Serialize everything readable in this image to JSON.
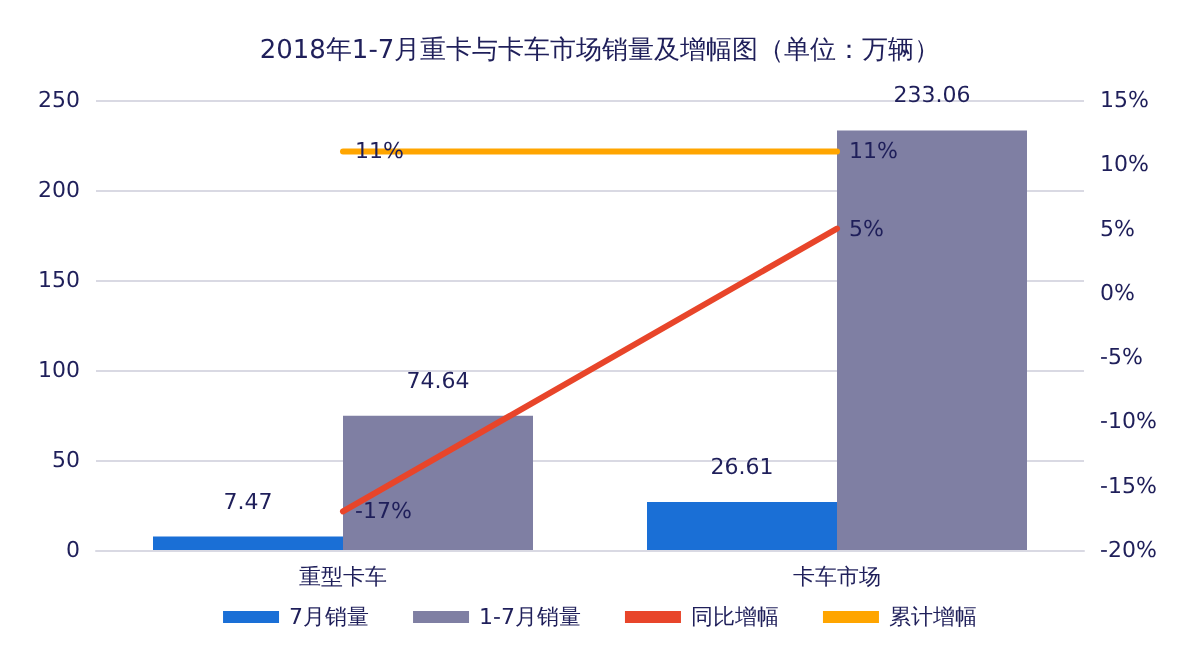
{
  "chart_data": {
    "type": "bar",
    "title": "2018年1-7月重卡与卡车市场销量及增幅图（单位：万辆）",
    "categories": [
      "重型卡车",
      "卡车市场"
    ],
    "series": [
      {
        "name": "7月销量",
        "color": "#1a6fd6",
        "values": [
          7.47,
          26.61
        ],
        "value_labels": [
          "7.47",
          "26.61"
        ]
      },
      {
        "name": "1-7月销量",
        "color": "#7f7fa3",
        "values": [
          74.64,
          233.06
        ],
        "value_labels": [
          "74.64",
          "233.06"
        ]
      },
      {
        "name": "同比增幅",
        "type": "line",
        "axis": "y2",
        "color": "#e8452a",
        "values": [
          -17,
          5
        ],
        "value_labels": [
          "-17%",
          "5%"
        ]
      },
      {
        "name": "累计增幅",
        "type": "line",
        "axis": "y2",
        "color": "#ffa500",
        "values": [
          11,
          11
        ],
        "value_labels": [
          "11%",
          "11%"
        ]
      }
    ],
    "ylim": [
      0,
      250
    ],
    "yticks": [
      0,
      50,
      100,
      150,
      200,
      250
    ],
    "y2lim": [
      -20,
      15
    ],
    "y2ticks": [
      {
        "value": -20,
        "label": "-20%"
      },
      {
        "value": -15,
        "label": "-15%"
      },
      {
        "value": -10,
        "label": "-10%"
      },
      {
        "value": -5,
        "label": "-5%"
      },
      {
        "value": 0,
        "label": "0%"
      },
      {
        "value": 5,
        "label": "5%"
      },
      {
        "value": 10,
        "label": "10%"
      },
      {
        "value": 15,
        "label": "15%"
      }
    ],
    "grid": "y",
    "legend": "bottom",
    "marker": "none",
    "line_style": "solid"
  }
}
